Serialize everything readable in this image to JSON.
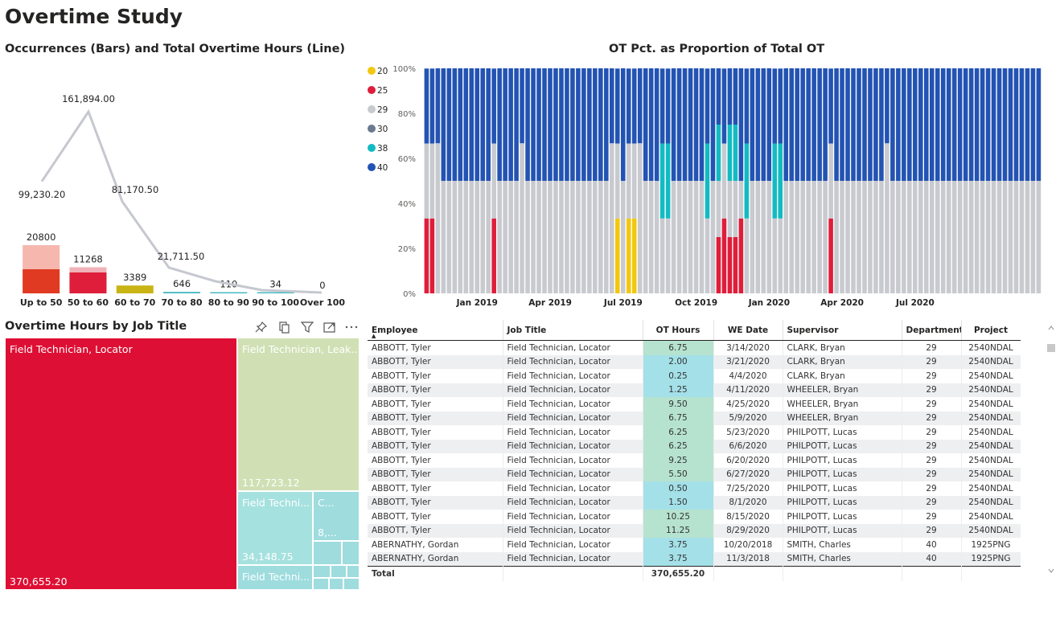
{
  "page": {
    "title": "Overtime Study"
  },
  "combo_chart": {
    "title": "Occurrences (Bars) and Total Overtime Hours (Line)",
    "chart_data": {
      "type": "bar",
      "categories": [
        "Up to 50",
        "50 to 60",
        "60 to 70",
        "70 to 80",
        "80 to 90",
        "90 to 100",
        "Over 100"
      ],
      "series": [
        {
          "type": "bar",
          "values": [
            20800,
            11268,
            3389,
            646,
            110,
            34,
            0
          ],
          "labels": [
            "20800",
            "11268",
            "3389",
            "646",
            "110",
            "34",
            "0"
          ]
        },
        {
          "type": "line",
          "values": [
            99230.2,
            161894.0,
            81170.5,
            21711.5,
            0,
            0,
            0
          ],
          "labels": [
            "99,230.20",
            "161,894.00",
            "81,170.50",
            "21,711.50",
            "",
            "",
            ""
          ]
        }
      ],
      "colors": {
        "bar_main": "#e03a23",
        "bar_light": "#f5b7ae",
        "bar_2": "#de1e3a",
        "bar_3": "#c9b415",
        "bar_4": "#48b9c0",
        "line": "#c6c8d0"
      }
    }
  },
  "stacked_chart": {
    "title": "OT Pct. as Proportion of Total OT",
    "chart_data": {
      "type": "bar",
      "stacked": "100%",
      "legend": {
        "position": "left",
        "items": [
          {
            "name": "20",
            "color": "#f2c80f"
          },
          {
            "name": "25",
            "color": "#de1e3a"
          },
          {
            "name": "29",
            "color": "#c8cad0"
          },
          {
            "name": "30",
            "color": "#6b7a8f"
          },
          {
            "name": "38",
            "color": "#12bbc2"
          },
          {
            "name": "40",
            "color": "#2353b3"
          }
        ]
      },
      "y_ticks": [
        "0%",
        "20%",
        "40%",
        "60%",
        "80%",
        "100%"
      ],
      "x_ticks": [
        "Jan 2019",
        "Apr 2019",
        "Jul 2019",
        "Oct 2019",
        "Jan 2020",
        "Apr 2020",
        "Jul 2020"
      ],
      "period_count": 110,
      "x_tick_period_index": [
        9,
        22,
        35,
        48,
        61,
        74,
        87
      ],
      "patterns": {
        "A": [
          0,
          0.333,
          0.333,
          0,
          0,
          0.333
        ],
        "B": [
          0,
          0,
          0.5,
          0,
          0,
          0.5
        ],
        "C": [
          0,
          0,
          0.667,
          0,
          0,
          0.333
        ],
        "D": [
          0.333,
          0,
          0.333,
          0,
          0,
          0.333
        ],
        "E": [
          0,
          0,
          0.333,
          0,
          0.333,
          0.333
        ],
        "F": [
          0,
          0,
          0.25,
          0,
          0.5,
          0.25
        ],
        "G": [
          0,
          0.25,
          0.25,
          0,
          0.25,
          0.25
        ],
        "H": [
          0,
          0.333,
          0.167,
          0,
          0,
          0.5
        ]
      },
      "bar_patterns": "AACBBBBBBBBBABBBBCBBBBBBBBBBBBBBBCDBDDCBBBEEBBBBBBEBGAGGHEBBBBEEBBBBBBBBABBBBBBBBBCBBBBBBBBBBBBBBBBBBBBBBBBBBBBBBB"
    }
  },
  "treemap": {
    "title": "Overtime Hours by Job Title",
    "cells": [
      {
        "label": "Field Technician, Locator",
        "value": "370,655.20",
        "color": "#de0f34"
      },
      {
        "label": "Field Technician, Leak...",
        "value": "117,723.12",
        "color": "#d0e0b4"
      },
      {
        "label": "Field Techni...",
        "value": "34,148.75",
        "color": "#a5e1df"
      },
      {
        "label": "C...",
        "value": "8,...",
        "color": "#9edcde"
      },
      {
        "label": "Field Techni...",
        "value": "",
        "color": "#9edcde"
      }
    ],
    "toolbar": {
      "pin": "pin-icon",
      "copy": "copy-icon",
      "filter": "filter-icon",
      "focus": "focus-mode-icon",
      "more": "more-options-icon"
    }
  },
  "table": {
    "columns": [
      "Employee",
      "Job Title",
      "OT Hours",
      "WE Date",
      "Supervisor",
      "Department",
      "Project"
    ],
    "rows": [
      [
        "ABBOTT, Tyler",
        "Field Technician, Locator",
        "6.75",
        "3/14/2020",
        "CLARK, Bryan",
        "29",
        "2540NDAL"
      ],
      [
        "ABBOTT, Tyler",
        "Field Technician, Locator",
        "2.00",
        "3/21/2020",
        "CLARK, Bryan",
        "29",
        "2540NDAL"
      ],
      [
        "ABBOTT, Tyler",
        "Field Technician, Locator",
        "0.25",
        "4/4/2020",
        "CLARK, Bryan",
        "29",
        "2540NDAL"
      ],
      [
        "ABBOTT, Tyler",
        "Field Technician, Locator",
        "1.25",
        "4/11/2020",
        "WHEELER, Bryan",
        "29",
        "2540NDAL"
      ],
      [
        "ABBOTT, Tyler",
        "Field Technician, Locator",
        "9.50",
        "4/25/2020",
        "WHEELER, Bryan",
        "29",
        "2540NDAL"
      ],
      [
        "ABBOTT, Tyler",
        "Field Technician, Locator",
        "6.75",
        "5/9/2020",
        "WHEELER, Bryan",
        "29",
        "2540NDAL"
      ],
      [
        "ABBOTT, Tyler",
        "Field Technician, Locator",
        "6.25",
        "5/23/2020",
        "PHILPOTT, Lucas",
        "29",
        "2540NDAL"
      ],
      [
        "ABBOTT, Tyler",
        "Field Technician, Locator",
        "6.25",
        "6/6/2020",
        "PHILPOTT, Lucas",
        "29",
        "2540NDAL"
      ],
      [
        "ABBOTT, Tyler",
        "Field Technician, Locator",
        "9.25",
        "6/20/2020",
        "PHILPOTT, Lucas",
        "29",
        "2540NDAL"
      ],
      [
        "ABBOTT, Tyler",
        "Field Technician, Locator",
        "5.50",
        "6/27/2020",
        "PHILPOTT, Lucas",
        "29",
        "2540NDAL"
      ],
      [
        "ABBOTT, Tyler",
        "Field Technician, Locator",
        "0.50",
        "7/25/2020",
        "PHILPOTT, Lucas",
        "29",
        "2540NDAL"
      ],
      [
        "ABBOTT, Tyler",
        "Field Technician, Locator",
        "1.50",
        "8/1/2020",
        "PHILPOTT, Lucas",
        "29",
        "2540NDAL"
      ],
      [
        "ABBOTT, Tyler",
        "Field Technician, Locator",
        "10.25",
        "8/15/2020",
        "PHILPOTT, Lucas",
        "29",
        "2540NDAL"
      ],
      [
        "ABBOTT, Tyler",
        "Field Technician, Locator",
        "11.25",
        "8/29/2020",
        "PHILPOTT, Lucas",
        "29",
        "2540NDAL"
      ],
      [
        "ABERNATHY, Gordan",
        "Field Technician, Locator",
        "3.75",
        "10/20/2018",
        "SMITH, Charles",
        "40",
        "1925PNG"
      ],
      [
        "ABERNATHY, Gordan",
        "Field Technician, Locator",
        "3.75",
        "11/3/2018",
        "SMITH, Charles",
        "40",
        "1925PNG"
      ]
    ],
    "total_label": "Total",
    "total_ot": "370,655.20"
  }
}
